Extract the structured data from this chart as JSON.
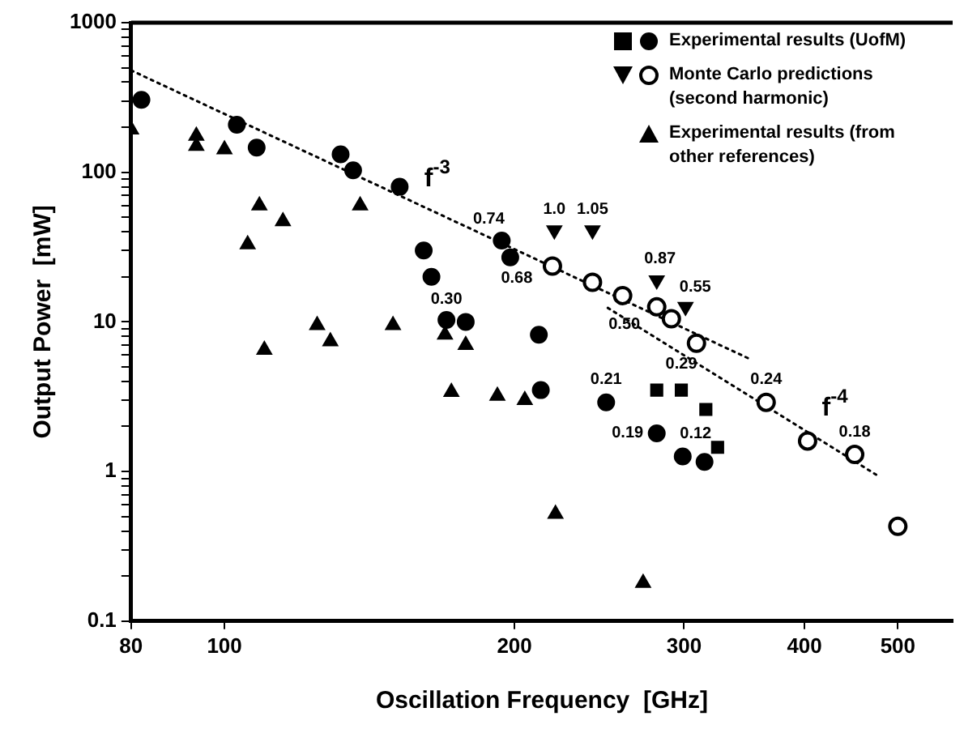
{
  "chart_data": {
    "type": "scatter",
    "xlabel": "Oscillation Frequency  [GHz]",
    "ylabel": "Output Power  [mW]",
    "log": "xy",
    "xlim": [
      80,
      570
    ],
    "xticks": [
      80,
      100,
      200,
      300,
      400,
      500
    ],
    "ylim": [
      0.1,
      1000
    ],
    "yticks": [
      0.1,
      {
        "value": 0.2,
        "label": null
      },
      {
        "value": 0.3,
        "label": null
      },
      {
        "value": 0.4,
        "label": null
      },
      {
        "value": 0.5,
        "label": null
      },
      {
        "value": 0.6,
        "label": null
      },
      {
        "value": 0.7,
        "label": null
      },
      {
        "value": 0.8,
        "label": null
      },
      {
        "value": 0.9,
        "label": null
      },
      1,
      {
        "value": 2,
        "label": null
      },
      {
        "value": 3,
        "label": null
      },
      {
        "value": 4,
        "label": null
      },
      {
        "value": 5,
        "label": null
      },
      {
        "value": 6,
        "label": null
      },
      {
        "value": 7,
        "label": null
      },
      {
        "value": 8,
        "label": null
      },
      {
        "value": 9,
        "label": null
      },
      10,
      {
        "value": 20,
        "label": null
      },
      {
        "value": 30,
        "label": null
      },
      {
        "value": 40,
        "label": null
      },
      {
        "value": 50,
        "label": null
      },
      {
        "value": 60,
        "label": null
      },
      {
        "value": 70,
        "label": null
      },
      {
        "value": 80,
        "label": null
      },
      {
        "value": 90,
        "label": null
      },
      100,
      {
        "value": 200,
        "label": null
      },
      {
        "value": 300,
        "label": null
      },
      {
        "value": 400,
        "label": null
      },
      {
        "value": 500,
        "label": null
      },
      {
        "value": 600,
        "label": null
      },
      {
        "value": 700,
        "label": null
      },
      {
        "value": 800,
        "label": null
      },
      {
        "value": 900,
        "label": null
      },
      1000
    ],
    "grid": false,
    "legend": "top right",
    "series": [
      {
        "color": "#000000",
        "marker": "square",
        "x": [
          281,
          298,
          316,
          325
        ],
        "values": [
          3.5,
          3.5,
          2.6,
          1.45
        ]
      },
      {
        "name": "Experimental results (UofM)",
        "color": "#000000",
        "marker": "circle",
        "x": [
          82,
          103,
          108,
          132,
          136,
          152,
          161,
          164,
          170,
          178,
          194,
          198,
          212,
          213,
          249,
          281,
          299,
          315
        ],
        "values": [
          305,
          208,
          146,
          132,
          103,
          80,
          30,
          20,
          10.3,
          10,
          35,
          27,
          8.2,
          3.5,
          2.9,
          1.8,
          1.26,
          1.16
        ]
      },
      {
        "color": "#000000",
        "marker": "triangle-down",
        "x": [
          220,
          241,
          281,
          301
        ],
        "values": [
          41,
          41,
          19,
          12.6
        ]
      },
      {
        "name": "Monte Carlo predictions (second harmonic)",
        "color": "#000000",
        "marker": "circle-open",
        "x": [
          219,
          241,
          259,
          281,
          291,
          309,
          365,
          403,
          451,
          500
        ],
        "values": [
          23.6,
          18.4,
          15,
          12.6,
          10.5,
          7.2,
          2.9,
          1.6,
          1.3,
          0.43
        ]
      },
      {
        "name": "Experimental results (from other references)",
        "color": "#000000",
        "marker": "triangle",
        "x": [
          80,
          93.5,
          93.5,
          100,
          105.7,
          108.7,
          110,
          115,
          124.8,
          128.8,
          138.3,
          149.6,
          169.4,
          172,
          178,
          192,
          205,
          220.6,
          272
        ],
        "values": [
          193,
          175,
          150,
          142,
          33,
          60,
          6.5,
          47,
          9.5,
          7.4,
          60,
          9.5,
          8.2,
          3.4,
          7,
          3.2,
          3,
          0.52,
          0.18
        ]
      },
      {
        "type": "line",
        "color": "#000000",
        "marker": "none",
        "line_style": "dotted",
        "x": [
          80,
          350
        ],
        "values": [
          480,
          5.7
        ]
      },
      {
        "type": "line",
        "color": "#000000",
        "marker": "none",
        "line_style": "dotted",
        "x": [
          250,
          475
        ],
        "values": [
          12.4,
          0.95
        ]
      }
    ],
    "annotations": [
      {
        "text": "f$^{-3}$",
        "x": 160,
        "y": 60
      },
      {
        "text": "f$^{-4}$",
        "x": 417,
        "y": 1.6
      },
      {
        "text": "0.30",
        "x": 170,
        "y": 10.3
      },
      {
        "text": "0.74",
        "x": 194,
        "y": 35
      },
      {
        "text": "0.68",
        "x": 198,
        "y": 27
      },
      {
        "text": "1.0",
        "x": 220,
        "y": 41
      },
      {
        "text": "1.05",
        "x": 241,
        "y": 41
      },
      {
        "text": "0.87",
        "x": 281,
        "y": 19
      },
      {
        "text": "0.55",
        "x": 301,
        "y": 12.6
      },
      {
        "text": "0.50",
        "x": 281,
        "y": 12.6
      },
      {
        "text": "0.21",
        "x": 249,
        "y": 2.9
      },
      {
        "text": "0.29",
        "x": 298,
        "y": 3.5
      },
      {
        "text": "0.19",
        "x": 281,
        "y": 1.8
      },
      {
        "text": "0.12",
        "x": 299,
        "y": 1.26
      },
      {
        "text": "0.24",
        "x": 365,
        "y": 2.9
      },
      {
        "text": "0.18",
        "x": 451,
        "y": 1.3
      }
    ]
  }
}
